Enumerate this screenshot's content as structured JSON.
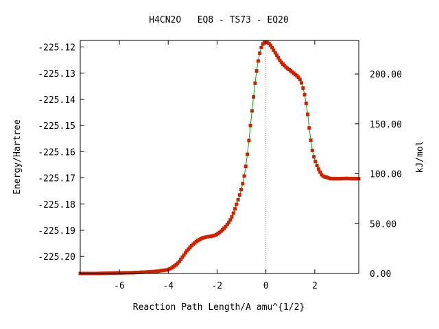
{
  "chart_data": {
    "type": "line",
    "title": "H4CN2O   EQ8 - TS73 - EQ20",
    "xlabel": "Reaction Path Length/A amu^{1/2}",
    "ylabel": "Energy/Hartree",
    "y2label": "kJ/mol",
    "xlim": [
      -7.6,
      3.8
    ],
    "ylim": [
      -225.2065,
      -225.1175
    ],
    "y2lim": [
      0,
      233.7
    ],
    "x_ticks": [
      -6,
      -4,
      -2,
      0,
      2
    ],
    "x_tick_labels": [
      "-6",
      "-4",
      "-2",
      "0",
      "2"
    ],
    "y_ticks": [
      -225.12,
      -225.13,
      -225.14,
      -225.15,
      -225.16,
      -225.17,
      -225.18,
      -225.19,
      -225.2
    ],
    "y_tick_labels": [
      "-225.12",
      "-225.13",
      "-225.14",
      "-225.15",
      "-225.16",
      "-225.17",
      "-225.18",
      "-225.19",
      "-225.20"
    ],
    "y2_ticks": [
      0,
      50,
      100,
      150,
      200
    ],
    "y2_tick_labels": [
      "0.00",
      "50.00",
      "100.00",
      "150.00",
      "200.00"
    ],
    "ts_x": 0,
    "grid": false,
    "line_color": "#00aa00",
    "marker_color": "#cc2200",
    "ts_line_color": "#999999",
    "series": [
      {
        "points": [
          [
            -7.6,
            -225.2065
          ],
          [
            -7.0,
            -225.2065
          ],
          [
            -6.5,
            -225.2064
          ],
          [
            -6.0,
            -225.2063
          ],
          [
            -5.5,
            -225.2062
          ],
          [
            -5.0,
            -225.206
          ],
          [
            -4.5,
            -225.2057
          ],
          [
            -4.2,
            -225.2053
          ],
          [
            -4.0,
            -225.205
          ],
          [
            -3.8,
            -225.204
          ],
          [
            -3.6,
            -225.2025
          ],
          [
            -3.4,
            -225.2
          ],
          [
            -3.2,
            -225.1975
          ],
          [
            -3.0,
            -225.1955
          ],
          [
            -2.8,
            -225.194
          ],
          [
            -2.6,
            -225.193
          ],
          [
            -2.4,
            -225.1925
          ],
          [
            -2.2,
            -225.1922
          ],
          [
            -2.0,
            -225.1915
          ],
          [
            -1.8,
            -225.19
          ],
          [
            -1.6,
            -225.188
          ],
          [
            -1.4,
            -225.185
          ],
          [
            -1.2,
            -225.18
          ],
          [
            -1.0,
            -225.174
          ],
          [
            -0.9,
            -225.17
          ],
          [
            -0.8,
            -225.164
          ],
          [
            -0.7,
            -225.156
          ],
          [
            -0.6,
            -225.147
          ],
          [
            -0.5,
            -225.1385
          ],
          [
            -0.4,
            -225.1305
          ],
          [
            -0.3,
            -225.1245
          ],
          [
            -0.2,
            -225.1205
          ],
          [
            -0.1,
            -225.1185
          ],
          [
            0.0,
            -225.1182
          ],
          [
            0.1,
            -225.1185
          ],
          [
            0.2,
            -225.1195
          ],
          [
            0.3,
            -225.121
          ],
          [
            0.4,
            -225.1225
          ],
          [
            0.5,
            -225.124
          ],
          [
            0.6,
            -225.1255
          ],
          [
            0.8,
            -225.1275
          ],
          [
            1.0,
            -225.129
          ],
          [
            1.2,
            -225.1305
          ],
          [
            1.4,
            -225.1325
          ],
          [
            1.5,
            -225.135
          ],
          [
            1.6,
            -225.139
          ],
          [
            1.7,
            -225.145
          ],
          [
            1.8,
            -225.153
          ],
          [
            1.9,
            -225.1595
          ],
          [
            2.0,
            -225.163
          ],
          [
            2.1,
            -225.1655
          ],
          [
            2.2,
            -225.1675
          ],
          [
            2.3,
            -225.169
          ],
          [
            2.5,
            -225.1698
          ],
          [
            2.7,
            -225.1703
          ],
          [
            3.0,
            -225.1703
          ],
          [
            3.3,
            -225.1702
          ],
          [
            3.6,
            -225.1703
          ],
          [
            3.8,
            -225.1703
          ]
        ]
      }
    ]
  }
}
